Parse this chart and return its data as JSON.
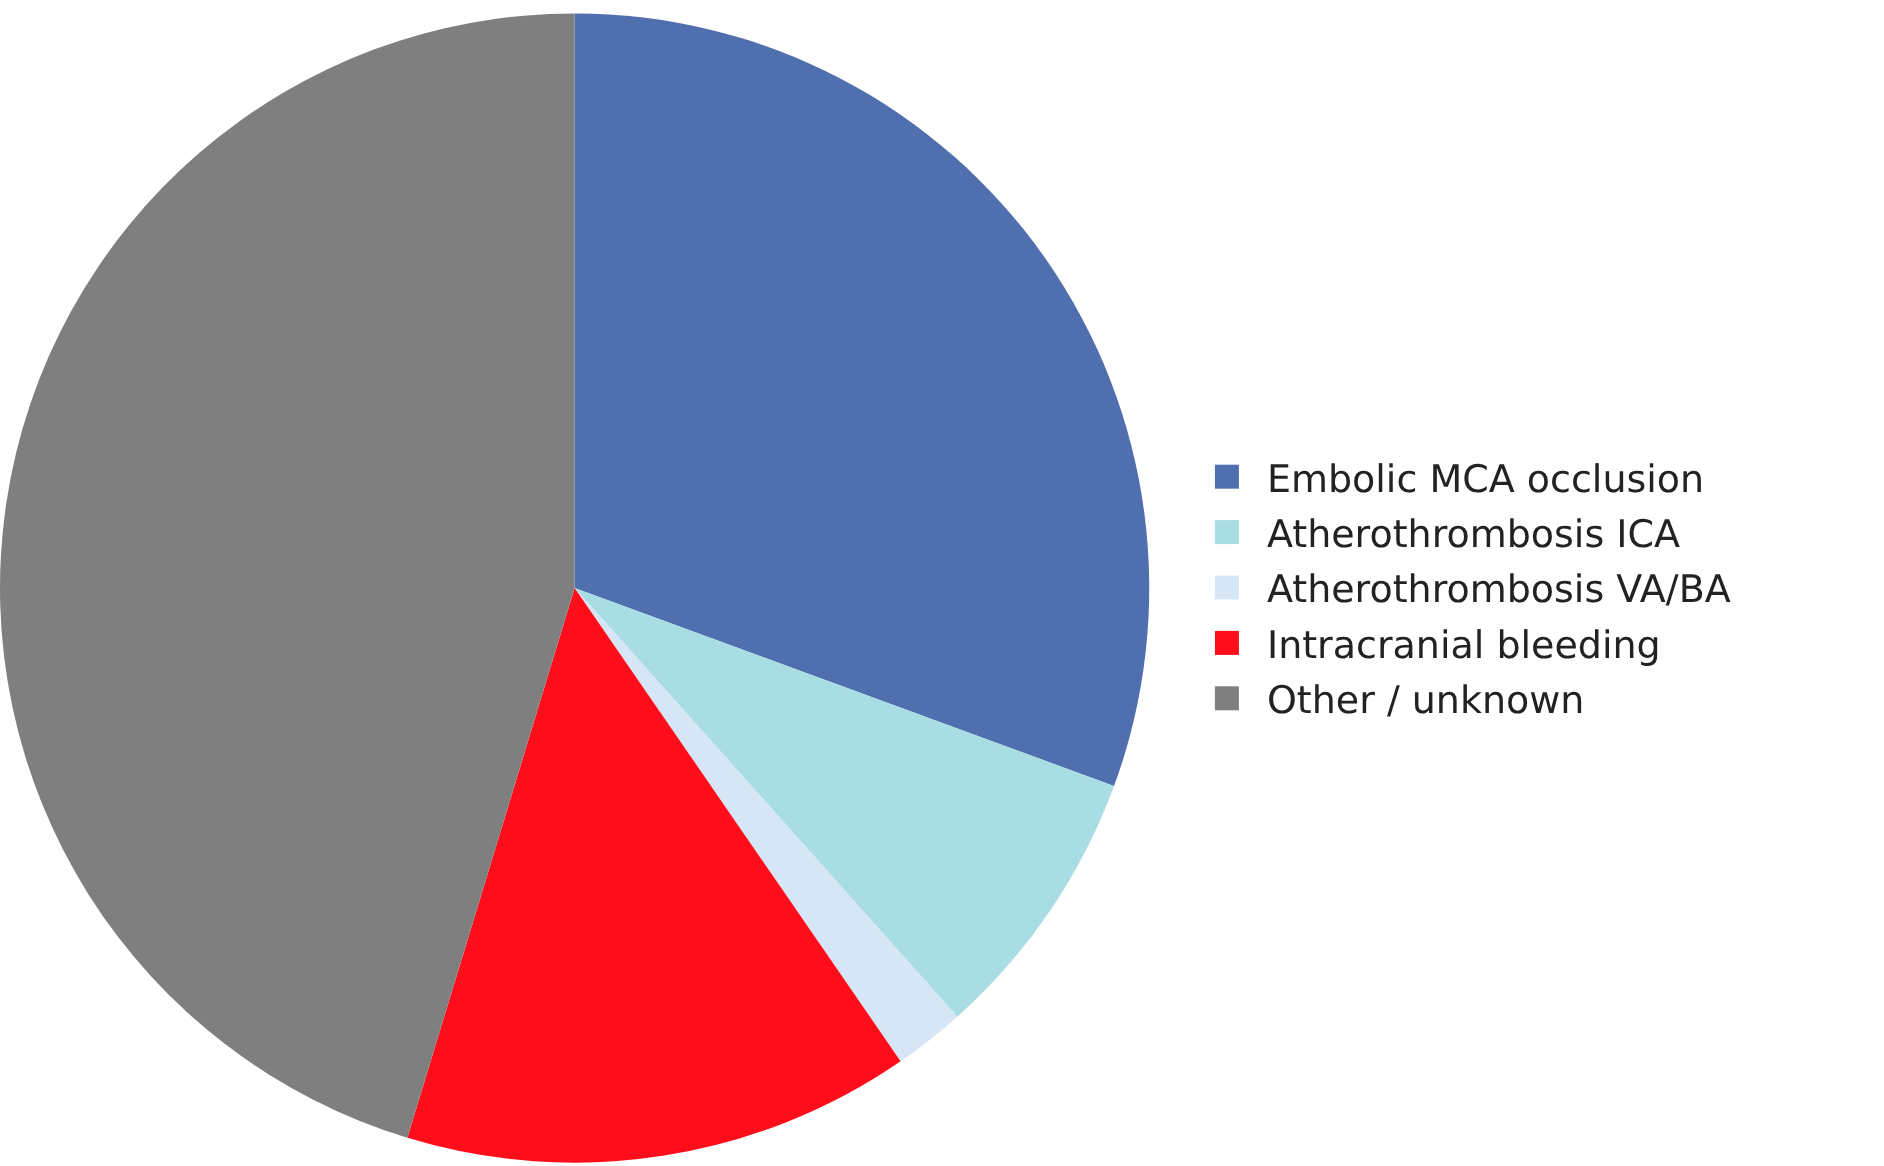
{
  "chart_data": {
    "type": "pie",
    "categories": [
      "Embolic MCA occlusion",
      "Atherothrombosis ICA",
      "Atherothrombosis VA/BA",
      "Intracranial bleeding",
      "Other / unknown"
    ],
    "values": [
      30.6,
      7.8,
      2.0,
      14.3,
      45.3
    ],
    "colors": [
      "#4f6fae",
      "#a8dde4",
      "#d6e6f7",
      "#ff0d1a",
      "#7f7f7f"
    ],
    "legend": "right"
  }
}
